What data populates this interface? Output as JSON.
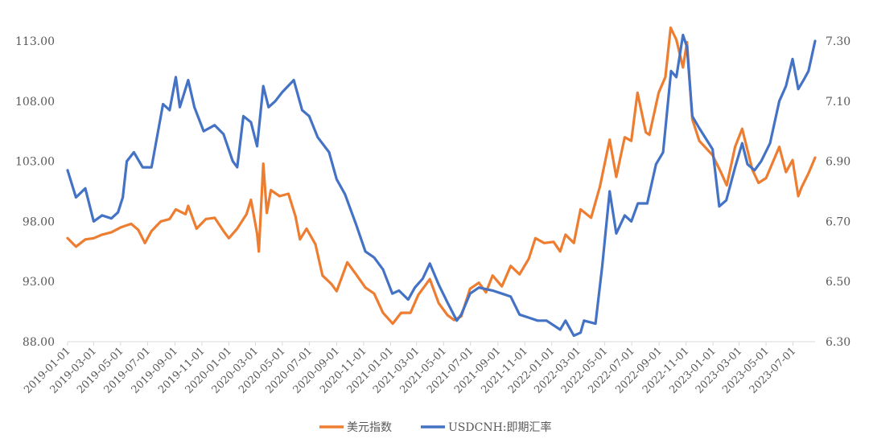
{
  "chart_data": {
    "type": "line",
    "title": "",
    "xlabel": "",
    "ylabel_left": "",
    "ylabel_right": "",
    "ylim_left": [
      88.0,
      113.0
    ],
    "ylim_right": [
      6.3,
      7.3
    ],
    "y_ticks_left": [
      "88.00",
      "93.00",
      "98.00",
      "103.00",
      "108.00",
      "113.00"
    ],
    "y_ticks_right": [
      "6.30",
      "6.50",
      "6.70",
      "6.90",
      "7.10",
      "7.30"
    ],
    "x_range": [
      "2019-01-01",
      "2023-08-20"
    ],
    "x_ticks": [
      "2019-01-01",
      "2019-03-01",
      "2019-05-01",
      "2019-07-01",
      "2019-09-01",
      "2019-11-01",
      "2020-01-01",
      "2020-03-01",
      "2020-05-01",
      "2020-07-01",
      "2020-09-01",
      "2020-11-01",
      "2021-01-01",
      "2021-03-01",
      "2021-05-01",
      "2021-07-01",
      "2021-09-01",
      "2021-11-01",
      "2022-01-01",
      "2022-03-01",
      "2022-05-01",
      "2022-07-01",
      "2022-09-01",
      "2022-11-01",
      "2023-01-01",
      "2023-03-01",
      "2023-05-01",
      "2023-07-01"
    ],
    "grid": false,
    "legend_position": "bottom-center",
    "series": [
      {
        "name": "美元指数",
        "axis": "left",
        "color": "#ED7D31",
        "points": [
          [
            "2019-01-01",
            96.6
          ],
          [
            "2019-01-20",
            95.9
          ],
          [
            "2019-02-10",
            96.5
          ],
          [
            "2019-03-01",
            96.6
          ],
          [
            "2019-03-20",
            96.9
          ],
          [
            "2019-04-10",
            97.1
          ],
          [
            "2019-05-01",
            97.5
          ],
          [
            "2019-05-25",
            97.8
          ],
          [
            "2019-06-10",
            97.3
          ],
          [
            "2019-06-25",
            96.2
          ],
          [
            "2019-07-10",
            97.2
          ],
          [
            "2019-07-31",
            98.0
          ],
          [
            "2019-08-20",
            98.2
          ],
          [
            "2019-09-03",
            99.0
          ],
          [
            "2019-09-25",
            98.6
          ],
          [
            "2019-10-01",
            99.3
          ],
          [
            "2019-10-20",
            97.4
          ],
          [
            "2019-11-10",
            98.2
          ],
          [
            "2019-11-30",
            98.3
          ],
          [
            "2019-12-20",
            97.2
          ],
          [
            "2020-01-01",
            96.6
          ],
          [
            "2020-01-20",
            97.4
          ],
          [
            "2020-02-10",
            98.6
          ],
          [
            "2020-02-20",
            99.8
          ],
          [
            "2020-03-05",
            97.0
          ],
          [
            "2020-03-09",
            95.5
          ],
          [
            "2020-03-19",
            102.8
          ],
          [
            "2020-03-27",
            98.7
          ],
          [
            "2020-04-05",
            100.6
          ],
          [
            "2020-04-25",
            100.1
          ],
          [
            "2020-05-15",
            100.3
          ],
          [
            "2020-05-31",
            98.4
          ],
          [
            "2020-06-10",
            96.5
          ],
          [
            "2020-06-25",
            97.4
          ],
          [
            "2020-07-15",
            96.1
          ],
          [
            "2020-07-31",
            93.5
          ],
          [
            "2020-08-20",
            92.8
          ],
          [
            "2020-09-01",
            92.2
          ],
          [
            "2020-09-25",
            94.6
          ],
          [
            "2020-10-15",
            93.6
          ],
          [
            "2020-11-05",
            92.5
          ],
          [
            "2020-11-25",
            92.0
          ],
          [
            "2020-12-15",
            90.4
          ],
          [
            "2021-01-06",
            89.5
          ],
          [
            "2021-01-25",
            90.4
          ],
          [
            "2021-02-15",
            90.4
          ],
          [
            "2021-03-05",
            91.9
          ],
          [
            "2021-03-31",
            93.2
          ],
          [
            "2021-04-20",
            91.2
          ],
          [
            "2021-05-10",
            90.2
          ],
          [
            "2021-05-25",
            89.8
          ],
          [
            "2021-06-10",
            90.1
          ],
          [
            "2021-06-30",
            92.4
          ],
          [
            "2021-07-20",
            92.9
          ],
          [
            "2021-08-05",
            92.1
          ],
          [
            "2021-08-20",
            93.5
          ],
          [
            "2021-09-10",
            92.6
          ],
          [
            "2021-09-30",
            94.3
          ],
          [
            "2021-10-20",
            93.6
          ],
          [
            "2021-11-10",
            94.9
          ],
          [
            "2021-11-25",
            96.6
          ],
          [
            "2021-12-15",
            96.2
          ],
          [
            "2022-01-05",
            96.3
          ],
          [
            "2022-01-20",
            95.5
          ],
          [
            "2022-02-01",
            96.9
          ],
          [
            "2022-02-20",
            96.2
          ],
          [
            "2022-03-07",
            99.0
          ],
          [
            "2022-03-31",
            98.3
          ],
          [
            "2022-04-20",
            100.9
          ],
          [
            "2022-05-12",
            104.8
          ],
          [
            "2022-05-27",
            101.7
          ],
          [
            "2022-06-15",
            105.0
          ],
          [
            "2022-06-30",
            104.7
          ],
          [
            "2022-07-14",
            108.7
          ],
          [
            "2022-08-02",
            105.4
          ],
          [
            "2022-08-10",
            105.2
          ],
          [
            "2022-08-31",
            108.7
          ],
          [
            "2022-09-15",
            110.0
          ],
          [
            "2022-09-27",
            114.1
          ],
          [
            "2022-10-10",
            113.1
          ],
          [
            "2022-10-25",
            110.8
          ],
          [
            "2022-11-03",
            112.9
          ],
          [
            "2022-11-15",
            106.5
          ],
          [
            "2022-12-01",
            104.7
          ],
          [
            "2022-12-31",
            103.5
          ],
          [
            "2023-01-20",
            102.0
          ],
          [
            "2023-02-01",
            101.0
          ],
          [
            "2023-02-20",
            104.2
          ],
          [
            "2023-03-08",
            105.7
          ],
          [
            "2023-03-31",
            102.3
          ],
          [
            "2023-04-14",
            101.2
          ],
          [
            "2023-05-01",
            101.6
          ],
          [
            "2023-05-31",
            104.2
          ],
          [
            "2023-06-15",
            102.1
          ],
          [
            "2023-06-30",
            103.1
          ],
          [
            "2023-07-13",
            100.1
          ],
          [
            "2023-07-20",
            100.8
          ],
          [
            "2023-08-05",
            102.0
          ],
          [
            "2023-08-20",
            103.3
          ]
        ]
      },
      {
        "name": "USDCNH:即期汇率",
        "axis": "right",
        "color": "#4472C4",
        "points": [
          [
            "2019-01-01",
            6.87
          ],
          [
            "2019-01-20",
            6.78
          ],
          [
            "2019-02-10",
            6.81
          ],
          [
            "2019-03-01",
            6.7
          ],
          [
            "2019-03-20",
            6.72
          ],
          [
            "2019-04-10",
            6.71
          ],
          [
            "2019-04-25",
            6.73
          ],
          [
            "2019-05-06",
            6.78
          ],
          [
            "2019-05-15",
            6.9
          ],
          [
            "2019-05-31",
            6.93
          ],
          [
            "2019-06-20",
            6.88
          ],
          [
            "2019-07-10",
            6.88
          ],
          [
            "2019-08-05",
            7.09
          ],
          [
            "2019-08-20",
            7.07
          ],
          [
            "2019-09-03",
            7.18
          ],
          [
            "2019-09-12",
            7.08
          ],
          [
            "2019-10-01",
            7.17
          ],
          [
            "2019-10-15",
            7.08
          ],
          [
            "2019-11-05",
            7.0
          ],
          [
            "2019-11-30",
            7.02
          ],
          [
            "2019-12-20",
            6.99
          ],
          [
            "2020-01-10",
            6.9
          ],
          [
            "2020-01-20",
            6.88
          ],
          [
            "2020-02-03",
            7.05
          ],
          [
            "2020-02-20",
            7.03
          ],
          [
            "2020-03-05",
            6.95
          ],
          [
            "2020-03-19",
            7.15
          ],
          [
            "2020-03-31",
            7.08
          ],
          [
            "2020-04-15",
            7.1
          ],
          [
            "2020-05-01",
            7.13
          ],
          [
            "2020-05-27",
            7.17
          ],
          [
            "2020-06-15",
            7.07
          ],
          [
            "2020-07-01",
            7.05
          ],
          [
            "2020-07-20",
            6.98
          ],
          [
            "2020-08-15",
            6.93
          ],
          [
            "2020-09-01",
            6.84
          ],
          [
            "2020-09-20",
            6.79
          ],
          [
            "2020-10-15",
            6.69
          ],
          [
            "2020-11-05",
            6.6
          ],
          [
            "2020-11-25",
            6.58
          ],
          [
            "2020-12-15",
            6.54
          ],
          [
            "2021-01-05",
            6.46
          ],
          [
            "2021-01-20",
            6.47
          ],
          [
            "2021-02-10",
            6.44
          ],
          [
            "2021-02-25",
            6.48
          ],
          [
            "2021-03-15",
            6.51
          ],
          [
            "2021-03-31",
            6.56
          ],
          [
            "2021-04-20",
            6.49
          ],
          [
            "2021-05-10",
            6.43
          ],
          [
            "2021-05-31",
            6.37
          ],
          [
            "2021-06-10",
            6.39
          ],
          [
            "2021-06-30",
            6.46
          ],
          [
            "2021-07-20",
            6.48
          ],
          [
            "2021-08-20",
            6.47
          ],
          [
            "2021-09-10",
            6.46
          ],
          [
            "2021-09-30",
            6.45
          ],
          [
            "2021-10-20",
            6.39
          ],
          [
            "2021-11-10",
            6.38
          ],
          [
            "2021-11-30",
            6.37
          ],
          [
            "2021-12-20",
            6.37
          ],
          [
            "2022-01-20",
            6.34
          ],
          [
            "2022-02-01",
            6.37
          ],
          [
            "2022-02-20",
            6.32
          ],
          [
            "2022-03-07",
            6.33
          ],
          [
            "2022-03-15",
            6.37
          ],
          [
            "2022-04-10",
            6.36
          ],
          [
            "2022-04-25",
            6.55
          ],
          [
            "2022-05-12",
            6.8
          ],
          [
            "2022-05-27",
            6.66
          ],
          [
            "2022-06-15",
            6.72
          ],
          [
            "2022-06-30",
            6.7
          ],
          [
            "2022-07-15",
            6.76
          ],
          [
            "2022-08-05",
            6.76
          ],
          [
            "2022-08-25",
            6.89
          ],
          [
            "2022-09-10",
            6.93
          ],
          [
            "2022-09-28",
            7.2
          ],
          [
            "2022-10-10",
            7.18
          ],
          [
            "2022-10-25",
            7.32
          ],
          [
            "2022-11-03",
            7.28
          ],
          [
            "2022-11-15",
            7.05
          ],
          [
            "2022-12-01",
            7.01
          ],
          [
            "2022-12-31",
            6.94
          ],
          [
            "2023-01-15",
            6.75
          ],
          [
            "2023-01-31",
            6.77
          ],
          [
            "2023-02-20",
            6.88
          ],
          [
            "2023-03-08",
            6.96
          ],
          [
            "2023-03-20",
            6.89
          ],
          [
            "2023-04-05",
            6.87
          ],
          [
            "2023-04-20",
            6.9
          ],
          [
            "2023-05-10",
            6.96
          ],
          [
            "2023-05-31",
            7.1
          ],
          [
            "2023-06-15",
            7.15
          ],
          [
            "2023-06-30",
            7.24
          ],
          [
            "2023-07-13",
            7.14
          ],
          [
            "2023-07-25",
            7.17
          ],
          [
            "2023-08-05",
            7.2
          ],
          [
            "2023-08-20",
            7.3
          ]
        ]
      }
    ]
  }
}
